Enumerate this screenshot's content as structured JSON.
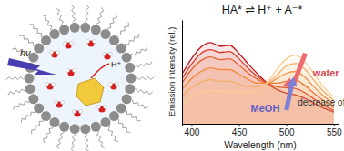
{
  "chart_data": {
    "type": "line",
    "title": "HA* ⇌ H⁺ + A⁻*",
    "x_label": "Wavelength (nm)",
    "y_label": "Emission Intensity (rel.)",
    "x": [
      390,
      400,
      410,
      420,
      430,
      440,
      450,
      460,
      470,
      480,
      490,
      500,
      510,
      520,
      530,
      540,
      550
    ],
    "series": [
      {
        "color": "#c0171d",
        "values": [
          0.55,
          0.72,
          0.85,
          0.9,
          0.86,
          0.87,
          0.78,
          0.66,
          0.55,
          0.45,
          0.38,
          0.34,
          0.32,
          0.28,
          0.22,
          0.17,
          0.13
        ]
      },
      {
        "color": "#d93a22",
        "values": [
          0.5,
          0.66,
          0.78,
          0.82,
          0.79,
          0.8,
          0.72,
          0.61,
          0.52,
          0.45,
          0.41,
          0.4,
          0.39,
          0.34,
          0.27,
          0.2,
          0.15
        ]
      },
      {
        "color": "#e8622c",
        "values": [
          0.45,
          0.6,
          0.7,
          0.74,
          0.71,
          0.72,
          0.65,
          0.56,
          0.49,
          0.45,
          0.45,
          0.47,
          0.48,
          0.42,
          0.33,
          0.25,
          0.18
        ]
      },
      {
        "color": "#f08a3c",
        "values": [
          0.38,
          0.5,
          0.58,
          0.62,
          0.6,
          0.6,
          0.55,
          0.49,
          0.45,
          0.45,
          0.5,
          0.56,
          0.58,
          0.51,
          0.4,
          0.3,
          0.22
        ]
      },
      {
        "color": "#f6ad62",
        "values": [
          0.3,
          0.4,
          0.46,
          0.49,
          0.47,
          0.47,
          0.44,
          0.41,
          0.41,
          0.45,
          0.54,
          0.64,
          0.67,
          0.6,
          0.47,
          0.35,
          0.26
        ]
      },
      {
        "color": "#fbcc94",
        "values": [
          0.22,
          0.3,
          0.35,
          0.37,
          0.36,
          0.36,
          0.35,
          0.35,
          0.38,
          0.46,
          0.6,
          0.72,
          0.76,
          0.68,
          0.54,
          0.4,
          0.3
        ]
      }
    ],
    "xlim": [
      390,
      555
    ],
    "xticks": [
      400,
      450,
      500,
      550
    ],
    "ylim": [
      0,
      1.15
    ],
    "tick_labels": "x",
    "grid": false,
    "annotations": [
      "water",
      "MeOH",
      "decrease of ω"
    ]
  },
  "diagram": {
    "labels": [
      "hν",
      "H⁺"
    ]
  }
}
